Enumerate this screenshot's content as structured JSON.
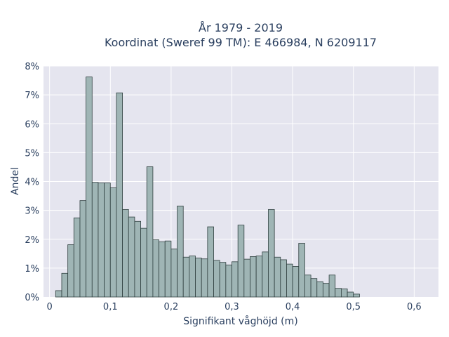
{
  "chart_data": {
    "type": "bar",
    "title_lines": [
      "År 1979 - 2019",
      "Koordinat (Sweref 99 TM): E 466984, N 6209117"
    ],
    "xlabel": "Signifikant våghöjd (m)",
    "ylabel": "Andel",
    "xlim": [
      -0.01,
      0.64
    ],
    "ylim": [
      0,
      8
    ],
    "x_ticks": [
      {
        "value": 0,
        "label": "0"
      },
      {
        "value": 0.1,
        "label": "0,1"
      },
      {
        "value": 0.2,
        "label": "0,2"
      },
      {
        "value": 0.3,
        "label": "0,3"
      },
      {
        "value": 0.4,
        "label": "0,4"
      },
      {
        "value": 0.5,
        "label": "0,5"
      },
      {
        "value": 0.6,
        "label": "0,6"
      }
    ],
    "y_ticks": [
      {
        "value": 0,
        "label": "0%"
      },
      {
        "value": 1,
        "label": "1%"
      },
      {
        "value": 2,
        "label": "2%"
      },
      {
        "value": 3,
        "label": "3%"
      },
      {
        "value": 4,
        "label": "4%"
      },
      {
        "value": 5,
        "label": "5%"
      },
      {
        "value": 6,
        "label": "6%"
      },
      {
        "value": 7,
        "label": "7%"
      },
      {
        "value": 8,
        "label": "8%"
      }
    ],
    "bin_width": 0.01,
    "bin_starts": [
      0.01,
      0.02,
      0.03,
      0.04,
      0.05,
      0.06,
      0.07,
      0.08,
      0.09,
      0.1,
      0.11,
      0.12,
      0.13,
      0.14,
      0.15,
      0.16,
      0.17,
      0.18,
      0.19,
      0.2,
      0.21,
      0.22,
      0.23,
      0.24,
      0.25,
      0.26,
      0.27,
      0.28,
      0.29,
      0.3,
      0.31,
      0.32,
      0.33,
      0.34,
      0.35,
      0.36,
      0.37,
      0.38,
      0.39,
      0.4,
      0.41,
      0.42,
      0.43,
      0.44,
      0.45,
      0.46,
      0.47,
      0.48,
      0.49,
      0.5,
      0.51,
      0.52,
      0.53,
      0.54,
      0.55,
      0.56,
      0.57,
      0.58,
      0.59,
      0.6
    ],
    "values": [
      0.22,
      0.82,
      1.81,
      2.74,
      3.34,
      7.62,
      3.97,
      3.95,
      3.95,
      3.78,
      7.07,
      3.03,
      2.77,
      2.62,
      2.38,
      4.51,
      1.98,
      1.91,
      1.94,
      1.66,
      3.15,
      1.38,
      1.42,
      1.35,
      1.32,
      2.43,
      1.27,
      1.2,
      1.11,
      1.22,
      2.49,
      1.31,
      1.4,
      1.42,
      1.56,
      3.03,
      1.38,
      1.29,
      1.14,
      1.06,
      1.86,
      0.76,
      0.64,
      0.53,
      0.47,
      0.76,
      0.3,
      0.28,
      0.17,
      0.1,
      0,
      0,
      0,
      0,
      0,
      0,
      0,
      0,
      0,
      0
    ],
    "grid": true,
    "colors": {
      "bar_fill": "#9fb5b5",
      "bar_stroke": "#2f3f3f",
      "plot_bg": "#e5e5ef",
      "grid": "#ffffff",
      "text": "#2a3f5f"
    }
  }
}
